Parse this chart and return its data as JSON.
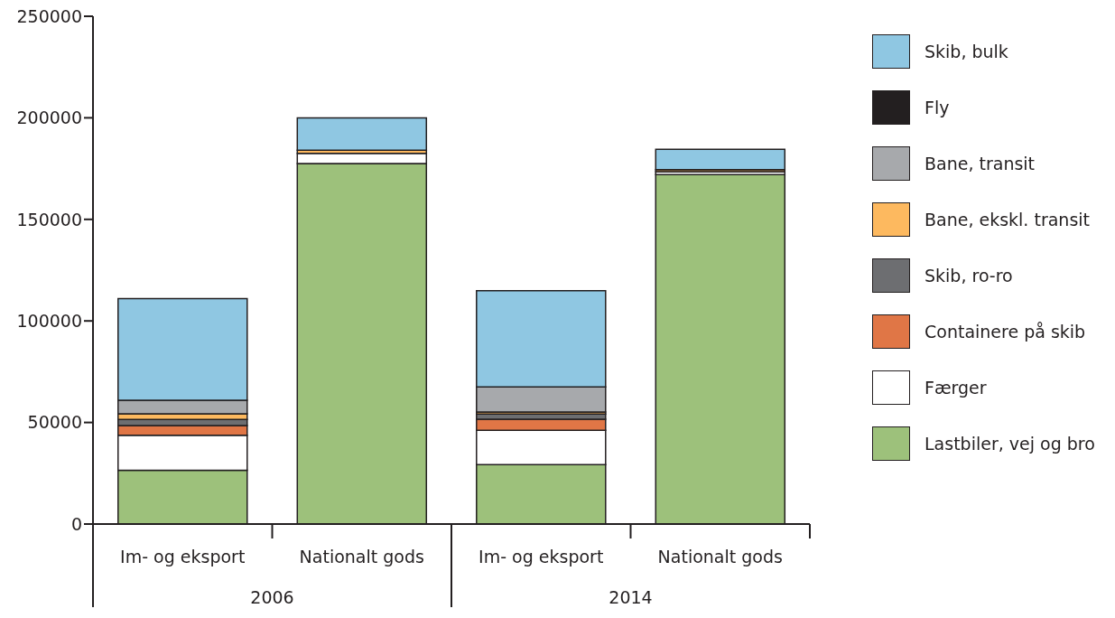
{
  "chart_data": {
    "type": "bar",
    "stacked": true,
    "categories": [
      "Im- og eksport",
      "Nationalt gods",
      "Im- og eksport",
      "Nationalt gods"
    ],
    "annotations": [
      "2006",
      "2014"
    ],
    "series": [
      {
        "name": "Lastbiler, vej og bro",
        "color": "#9dc17b",
        "values": [
          26500,
          177500,
          29200,
          172000
        ]
      },
      {
        "name": "Færger",
        "color": "#ffffff",
        "values": [
          17200,
          5000,
          17000,
          1500
        ]
      },
      {
        "name": "Containere på skib",
        "color": "#e07646",
        "values": [
          4800,
          0,
          5400,
          0
        ]
      },
      {
        "name": "Skib, ro-ro",
        "color": "#6d6e71",
        "values": [
          3000,
          0,
          2600,
          0
        ]
      },
      {
        "name": "Bane, ekskl. transit",
        "color": "#fdb95f",
        "values": [
          2800,
          1500,
          1000,
          1000
        ]
      },
      {
        "name": "Bane, transit",
        "color": "#a7a9ac",
        "values": [
          6600,
          0,
          12300,
          0
        ]
      },
      {
        "name": "Fly",
        "color": "#231f20",
        "values": [
          0,
          0,
          0,
          0
        ]
      },
      {
        "name": "Skib, bulk",
        "color": "#8fc7e2",
        "values": [
          50100,
          16000,
          47400,
          10000
        ]
      }
    ],
    "ylim": [
      0,
      250000
    ],
    "yticks": [
      0,
      50000,
      100000,
      150000,
      200000,
      250000
    ],
    "grid": false,
    "legend": "right"
  }
}
